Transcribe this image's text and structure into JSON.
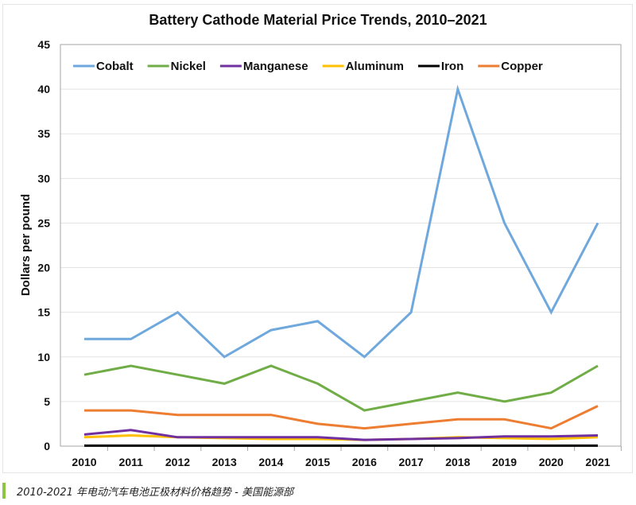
{
  "chart_data": {
    "type": "line",
    "title": "Battery Cathode Material Price Trends, 2010–2021",
    "xlabel": "",
    "ylabel": "Dollars per pound",
    "ylim": [
      0,
      45
    ],
    "yticks": [
      0,
      5,
      10,
      15,
      20,
      25,
      30,
      35,
      40,
      45
    ],
    "grid": true,
    "legend_position": "top",
    "categories": [
      "2010",
      "2011",
      "2012",
      "2013",
      "2014",
      "2015",
      "2016",
      "2017",
      "2018",
      "2019",
      "2020",
      "2021"
    ],
    "series": [
      {
        "name": "Cobalt",
        "color": "#6fa8dc",
        "values": [
          12,
          12,
          15,
          10,
          13,
          14,
          10,
          15,
          40,
          25,
          15,
          25
        ]
      },
      {
        "name": "Nickel",
        "color": "#70ad47",
        "values": [
          8,
          9,
          8,
          7,
          9,
          7,
          4,
          5,
          6,
          5,
          6,
          9
        ]
      },
      {
        "name": "Manganese",
        "color": "#7030a0",
        "values": [
          1.3,
          1.8,
          1.0,
          1.0,
          1.0,
          1.0,
          0.7,
          0.8,
          0.9,
          1.1,
          1.1,
          1.2
        ]
      },
      {
        "name": "Aluminum",
        "color": "#ffc000",
        "values": [
          1.0,
          1.2,
          1.0,
          0.9,
          0.8,
          0.8,
          0.7,
          0.8,
          1.0,
          0.9,
          0.8,
          1.0
        ]
      },
      {
        "name": "Iron",
        "color": "#000000",
        "values": [
          0.05,
          0.05,
          0.05,
          0.05,
          0.05,
          0.05,
          0.05,
          0.05,
          0.05,
          0.05,
          0.05,
          0.05
        ]
      },
      {
        "name": "Copper",
        "color": "#ed7d31",
        "values": [
          4,
          4,
          3.5,
          3.5,
          3.5,
          2.5,
          2,
          2.5,
          3,
          3,
          2,
          4.5
        ]
      }
    ]
  },
  "caption": "2010-2021 年电动汽车电池正极材料价格趋势 - 美国能源部",
  "caption_accent": "#8cc63f"
}
